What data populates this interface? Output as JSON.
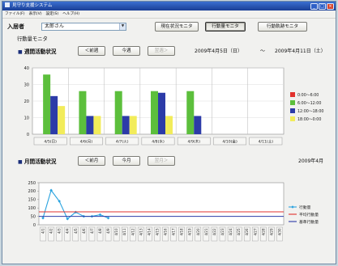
{
  "window": {
    "title": "見守り支援システム"
  },
  "menu": [
    "ファイル(F)",
    "表示(V)",
    "設定(S)",
    "ヘルプ(H)"
  ],
  "resident": {
    "label": "入居者",
    "selected": "太郎さん"
  },
  "monitor_tabs": [
    {
      "label": "現在状況モニタ",
      "active": false
    },
    {
      "label": "行動量モニタ",
      "active": true
    },
    {
      "label": "行動軌跡モニタ",
      "active": false
    }
  ],
  "current_view": "行動量モニタ",
  "weekly": {
    "title": "週間活動状況",
    "prev": "＜前週",
    "current": "今週",
    "next": "翌週＞",
    "range_start": "2009年4月5日（日）",
    "range_sep": "～",
    "range_end": "2009年4月11日（土）"
  },
  "monthly": {
    "title": "月間活動状況",
    "prev": "＜前月",
    "current": "今月",
    "next": "翌月＞",
    "month": "2009年4月"
  },
  "icons": {
    "section": "square-bullet-icon",
    "dropdown": "chevron-down-icon"
  },
  "chart_data": [
    {
      "type": "bar",
      "categories": [
        "4/5(日)",
        "4/6(月)",
        "4/7(火)",
        "4/8(水)",
        "4/9(木)",
        "4/10(金)",
        "4/11(土)"
      ],
      "series": [
        {
          "name": "0:00～6:00",
          "color": "#e2312d",
          "values": [
            0,
            0,
            0,
            0,
            0,
            null,
            null
          ]
        },
        {
          "name": "6:00～12:00",
          "color": "#5cbf3c",
          "values": [
            36,
            26,
            26,
            26,
            26,
            null,
            null
          ]
        },
        {
          "name": "12:00～18:00",
          "color": "#2c3ba8",
          "values": [
            23,
            11,
            11,
            25,
            11,
            null,
            null
          ]
        },
        {
          "name": "18:00～0:00",
          "color": "#f2ec5a",
          "values": [
            17,
            11,
            11,
            11,
            0,
            null,
            null
          ]
        }
      ],
      "yticks": [
        0,
        10,
        20,
        30,
        40
      ],
      "ylim": [
        0,
        40
      ],
      "grid": true,
      "legend": "right"
    },
    {
      "type": "line",
      "x": [
        "4/1",
        "4/2",
        "4/3",
        "4/4",
        "4/5",
        "4/6",
        "4/7",
        "4/8",
        "4/9",
        "4/10",
        "4/11",
        "4/12",
        "4/13",
        "4/14",
        "4/15",
        "4/16",
        "4/17",
        "4/18",
        "4/19",
        "4/20",
        "4/21",
        "4/22",
        "4/23",
        "4/24",
        "4/25",
        "4/26",
        "4/27",
        "4/28",
        "4/29",
        "4/30"
      ],
      "series": [
        {
          "name": "行動量",
          "color": "#2aa3df",
          "marker": "diamond",
          "values": [
            40,
            205,
            140,
            35,
            75,
            50,
            50,
            60,
            40,
            null,
            null,
            null,
            null,
            null,
            null,
            null,
            null,
            null,
            null,
            null,
            null,
            null,
            null,
            null,
            null,
            null,
            null,
            null,
            null,
            null
          ]
        },
        {
          "name": "平均行動量",
          "color": "#e2312d",
          "constant": 77
        },
        {
          "name": "基準行動量",
          "color": "#2c3ba8",
          "constant": 50
        }
      ],
      "yticks": [
        0,
        50,
        100,
        150,
        200,
        250
      ],
      "ylim": [
        0,
        250
      ],
      "grid": false,
      "legend": "right"
    }
  ]
}
